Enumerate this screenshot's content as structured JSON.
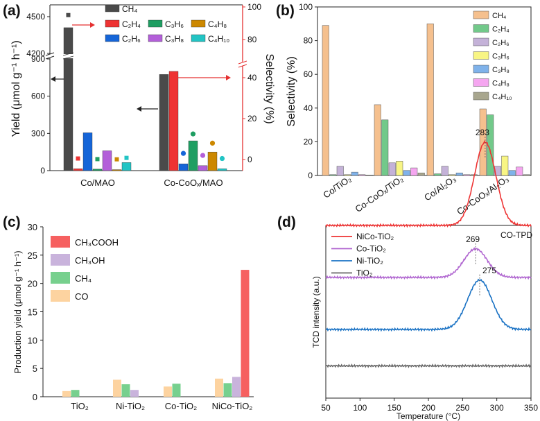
{
  "figure": {
    "panel_labels": [
      "(a)",
      "(b)",
      "(c)",
      "(d)"
    ]
  },
  "chart_data": [
    {
      "panel": "(a)",
      "type": "bar",
      "categories": [
        "Co/MAO",
        "Co-CoOₓ/MAO"
      ],
      "series": [
        {
          "name": "CH₄",
          "values": [
            4410,
            775
          ],
          "color": "#4a4a4a"
        },
        {
          "name": "C₂H₄",
          "values": [
            15,
            800
          ],
          "color": "#ee3333"
        },
        {
          "name": "C₂H₆",
          "values": [
            305,
            55
          ],
          "color": "#1565d8"
        },
        {
          "name": "C₃H₆",
          "values": [
            12,
            240
          ],
          "color": "#1f9e62"
        },
        {
          "name": "C₃H₈",
          "values": [
            160,
            40
          ],
          "color": "#b35fd9"
        },
        {
          "name": "C₄H₈",
          "values": [
            8,
            150
          ],
          "color": "#cc8800"
        },
        {
          "name": "C₄H₁₀",
          "values": [
            65,
            15
          ],
          "color": "#22c4c4"
        }
      ],
      "selectivity_dots": [
        {
          "category": "Co/MAO",
          "values": [
            95,
            0.5,
            3.7,
            0.2,
            2.0,
            0.1,
            0.8
          ]
        },
        {
          "category": "Co-CoOₓ/MAO",
          "values": [
            40,
            41,
            3,
            12.5,
            2,
            8,
            0.5
          ]
        }
      ],
      "ylabel": "Yield (μmol g⁻¹ h⁻¹)",
      "y2label": "Selectivity (%)",
      "yticks_lower": [
        0,
        300,
        600,
        900
      ],
      "yticks_upper": [
        4200,
        4500
      ],
      "y2ticks": [
        0,
        20,
        40,
        80,
        100
      ],
      "xlabel": ""
    },
    {
      "panel": "(b)",
      "type": "bar",
      "categories": [
        "Co/TiO₂",
        "Co-CoOₓ/TiO₂",
        "Co/Al₂O₃",
        "Co-CoOₓ/Al₂O₃"
      ],
      "series": [
        {
          "name": "CH₄",
          "values": [
            89,
            42,
            90,
            39.5
          ],
          "color": "#f5c08e"
        },
        {
          "name": "C₂H₄",
          "values": [
            0.5,
            33,
            1,
            36
          ],
          "color": "#72c98a"
        },
        {
          "name": "C₂H₆",
          "values": [
            5.5,
            7.5,
            5.5,
            5.5
          ],
          "color": "#c4b2d8"
        },
        {
          "name": "C₃H₆",
          "values": [
            0.5,
            8.5,
            0.5,
            11.5
          ],
          "color": "#f8f584"
        },
        {
          "name": "C₃H₈",
          "values": [
            2,
            3,
            1.5,
            3
          ],
          "color": "#7fb2ea"
        },
        {
          "name": "C₄H₈",
          "values": [
            0.5,
            4.5,
            0.5,
            5
          ],
          "color": "#f5a6f0"
        },
        {
          "name": "C₄H₁₀",
          "values": [
            0.3,
            1.5,
            0.5,
            0.5
          ],
          "color": "#a8a68e"
        }
      ],
      "ylabel": "Selectivity (%)",
      "ylim": [
        0,
        100
      ],
      "yticks": [
        0,
        20,
        40,
        60,
        80,
        100
      ],
      "legend_position": "top-right"
    },
    {
      "panel": "(c)",
      "type": "bar",
      "categories": [
        "TiO₂",
        "Ni-TiO₂",
        "Co-TiO₂",
        "NiCo-TiO₂"
      ],
      "series": [
        {
          "name": "CO",
          "values": [
            1.0,
            3.0,
            1.8,
            3.2
          ],
          "color": "#fdd3a0"
        },
        {
          "name": "CH₄",
          "values": [
            1.2,
            2.2,
            2.3,
            2.4
          ],
          "color": "#77d08e"
        },
        {
          "name": "CH₃OH",
          "values": [
            0,
            1.2,
            0,
            3.5
          ],
          "color": "#c9b3dc"
        },
        {
          "name": "CH₃COOH",
          "values": [
            0,
            0,
            0,
            22.4
          ],
          "color": "#f66060"
        }
      ],
      "legend_order": [
        "CH₃COOH",
        "CH₃OH",
        "CH₄",
        "CO"
      ],
      "ylabel": "Production yield (μmol g⁻¹ h⁻¹)",
      "ylim": [
        0,
        30
      ],
      "yticks": [
        0,
        5,
        10,
        15,
        20,
        25,
        30
      ]
    },
    {
      "panel": "(d)",
      "type": "line",
      "title": "CO-TPD",
      "xlabel": "Temperature (°C)",
      "ylabel": "TCD intensity (a.u.)",
      "xlim": [
        50,
        350
      ],
      "xticks": [
        50,
        100,
        150,
        200,
        250,
        300,
        350
      ],
      "series": [
        {
          "name": "NiCo-TiO₂",
          "color": "#ee3333",
          "baseline": 3.0,
          "peak_T": 283,
          "peak_height": 1.6,
          "width": 22
        },
        {
          "name": "Co-TiO₂",
          "color": "#b066d0",
          "baseline": 2.0,
          "peak_T": 269,
          "peak_height": 0.55,
          "width": 24
        },
        {
          "name": "Ni-TiO₂",
          "color": "#1a72c4",
          "baseline": 1.0,
          "peak_T": 275,
          "peak_height": 0.95,
          "width": 25
        },
        {
          "name": "TiO₂",
          "color": "#666666",
          "baseline": 0.3,
          "peak_T": 0,
          "peak_height": 0,
          "width": 0
        }
      ],
      "peak_labels": [
        "283",
        "269",
        "275"
      ]
    }
  ]
}
